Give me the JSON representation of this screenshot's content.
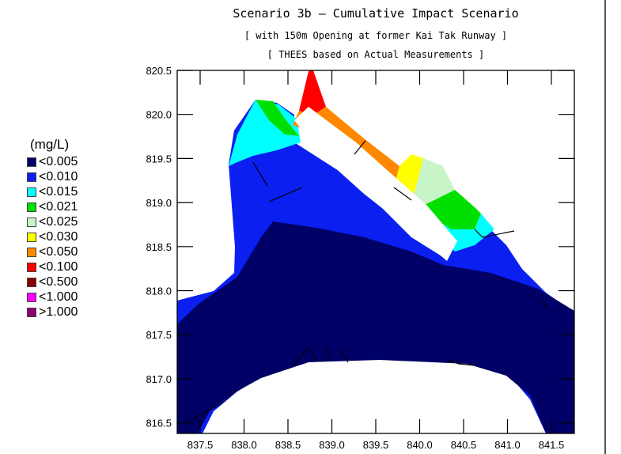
{
  "title": "Scenario 3b – Cumulative Impact Scenario",
  "subtitle1": "[ with 150m Opening at former Kai Tak Runway ]",
  "subtitle2": "[ THEES based on Actual Measurements ]",
  "legend": {
    "title": "(mg/L)",
    "items": [
      {
        "label": "<0.005",
        "color": "#000066"
      },
      {
        "label": "<0.010",
        "color": "#0a1ff0"
      },
      {
        "label": "<0.015",
        "color": "#00ffff"
      },
      {
        "label": "<0.021",
        "color": "#00e000"
      },
      {
        "label": "<0.025",
        "color": "#c8f5c8"
      },
      {
        "label": "<0.030",
        "color": "#ffff00"
      },
      {
        "label": "<0.050",
        "color": "#ff8800"
      },
      {
        "label": "<0.100",
        "color": "#ff0000"
      },
      {
        "label": "<0.500",
        "color": "#8b0000"
      },
      {
        "label": "<1.000",
        "color": "#ff00ff"
      },
      {
        "label": ">1.000",
        "color": "#8b006e"
      }
    ]
  },
  "axes": {
    "x_ticks": [
      "837.5",
      "838.0",
      "838.5",
      "839.0",
      "839.5",
      "840.0",
      "840.5",
      "841.0",
      "841.5"
    ],
    "y_ticks": [
      "820.5",
      "820.0",
      "819.5",
      "819.0",
      "818.5",
      "818.0",
      "817.5",
      "817.0",
      "816.5"
    ]
  }
}
